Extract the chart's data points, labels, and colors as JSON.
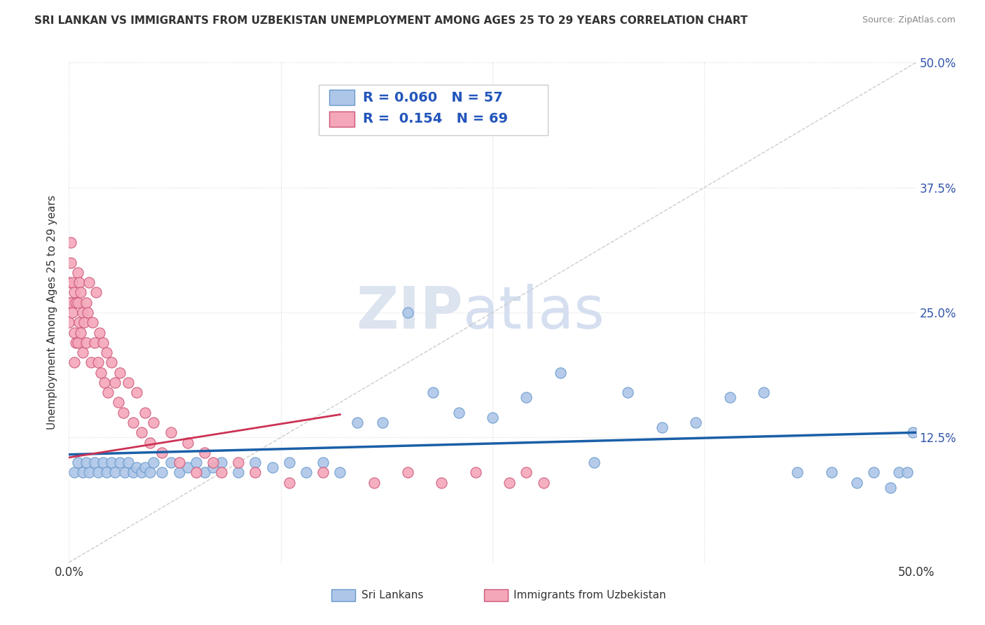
{
  "title": "SRI LANKAN VS IMMIGRANTS FROM UZBEKISTAN UNEMPLOYMENT AMONG AGES 25 TO 29 YEARS CORRELATION CHART",
  "source": "Source: ZipAtlas.com",
  "ylabel": "Unemployment Among Ages 25 to 29 years",
  "xlim": [
    0.0,
    0.5
  ],
  "ylim": [
    0.0,
    0.5
  ],
  "legend_sri_lankans": "Sri Lankans",
  "legend_uzbekistan": "Immigrants from Uzbekistan",
  "r_sri": 0.06,
  "n_sri": 57,
  "r_uzb": 0.154,
  "n_uzb": 69,
  "background_color": "#ffffff",
  "grid_color": "#d8d8d8",
  "sri_color": "#aec6e8",
  "sri_edge": "#6699cc",
  "uzb_color": "#f4a7b9",
  "uzb_edge": "#cc5577",
  "sri_trend_color": "#1a5fa8",
  "uzb_trend_color": "#cc3355",
  "diag_color": "#cccccc",
  "sri_x": [
    0.003,
    0.005,
    0.008,
    0.01,
    0.012,
    0.015,
    0.017,
    0.02,
    0.022,
    0.025,
    0.027,
    0.03,
    0.033,
    0.035,
    0.038,
    0.04,
    0.043,
    0.045,
    0.048,
    0.05,
    0.055,
    0.06,
    0.065,
    0.07,
    0.075,
    0.08,
    0.085,
    0.09,
    0.1,
    0.11,
    0.12,
    0.13,
    0.14,
    0.15,
    0.16,
    0.17,
    0.185,
    0.2,
    0.215,
    0.23,
    0.25,
    0.27,
    0.29,
    0.31,
    0.33,
    0.35,
    0.37,
    0.39,
    0.41,
    0.43,
    0.45,
    0.465,
    0.475,
    0.485,
    0.49,
    0.495,
    0.498
  ],
  "sri_y": [
    0.09,
    0.1,
    0.09,
    0.1,
    0.09,
    0.1,
    0.09,
    0.1,
    0.09,
    0.1,
    0.09,
    0.1,
    0.09,
    0.1,
    0.09,
    0.095,
    0.09,
    0.095,
    0.09,
    0.1,
    0.09,
    0.1,
    0.09,
    0.095,
    0.1,
    0.09,
    0.095,
    0.1,
    0.09,
    0.1,
    0.095,
    0.1,
    0.09,
    0.1,
    0.09,
    0.14,
    0.14,
    0.25,
    0.17,
    0.15,
    0.145,
    0.165,
    0.19,
    0.1,
    0.17,
    0.135,
    0.14,
    0.165,
    0.17,
    0.09,
    0.09,
    0.08,
    0.09,
    0.075,
    0.09,
    0.09,
    0.13
  ],
  "uzb_x": [
    0.0,
    0.0,
    0.0,
    0.001,
    0.001,
    0.001,
    0.002,
    0.002,
    0.003,
    0.003,
    0.003,
    0.004,
    0.004,
    0.005,
    0.005,
    0.005,
    0.006,
    0.006,
    0.007,
    0.007,
    0.008,
    0.008,
    0.009,
    0.01,
    0.01,
    0.011,
    0.012,
    0.013,
    0.014,
    0.015,
    0.016,
    0.017,
    0.018,
    0.019,
    0.02,
    0.021,
    0.022,
    0.023,
    0.025,
    0.027,
    0.029,
    0.03,
    0.032,
    0.035,
    0.038,
    0.04,
    0.043,
    0.045,
    0.048,
    0.05,
    0.055,
    0.06,
    0.065,
    0.07,
    0.075,
    0.08,
    0.085,
    0.09,
    0.1,
    0.11,
    0.13,
    0.15,
    0.18,
    0.2,
    0.22,
    0.24,
    0.26,
    0.27,
    0.28
  ],
  "uzb_y": [
    0.28,
    0.26,
    0.24,
    0.32,
    0.3,
    0.26,
    0.28,
    0.25,
    0.27,
    0.23,
    0.2,
    0.26,
    0.22,
    0.29,
    0.26,
    0.22,
    0.28,
    0.24,
    0.27,
    0.23,
    0.25,
    0.21,
    0.24,
    0.26,
    0.22,
    0.25,
    0.28,
    0.2,
    0.24,
    0.22,
    0.27,
    0.2,
    0.23,
    0.19,
    0.22,
    0.18,
    0.21,
    0.17,
    0.2,
    0.18,
    0.16,
    0.19,
    0.15,
    0.18,
    0.14,
    0.17,
    0.13,
    0.15,
    0.12,
    0.14,
    0.11,
    0.13,
    0.1,
    0.12,
    0.09,
    0.11,
    0.1,
    0.09,
    0.1,
    0.09,
    0.08,
    0.09,
    0.08,
    0.09,
    0.08,
    0.09,
    0.08,
    0.09,
    0.08
  ],
  "sri_trend_x": [
    0.0,
    0.5
  ],
  "sri_trend_y": [
    0.108,
    0.13
  ],
  "uzb_trend_x": [
    0.0,
    0.15
  ],
  "uzb_trend_y": [
    0.105,
    0.145
  ]
}
